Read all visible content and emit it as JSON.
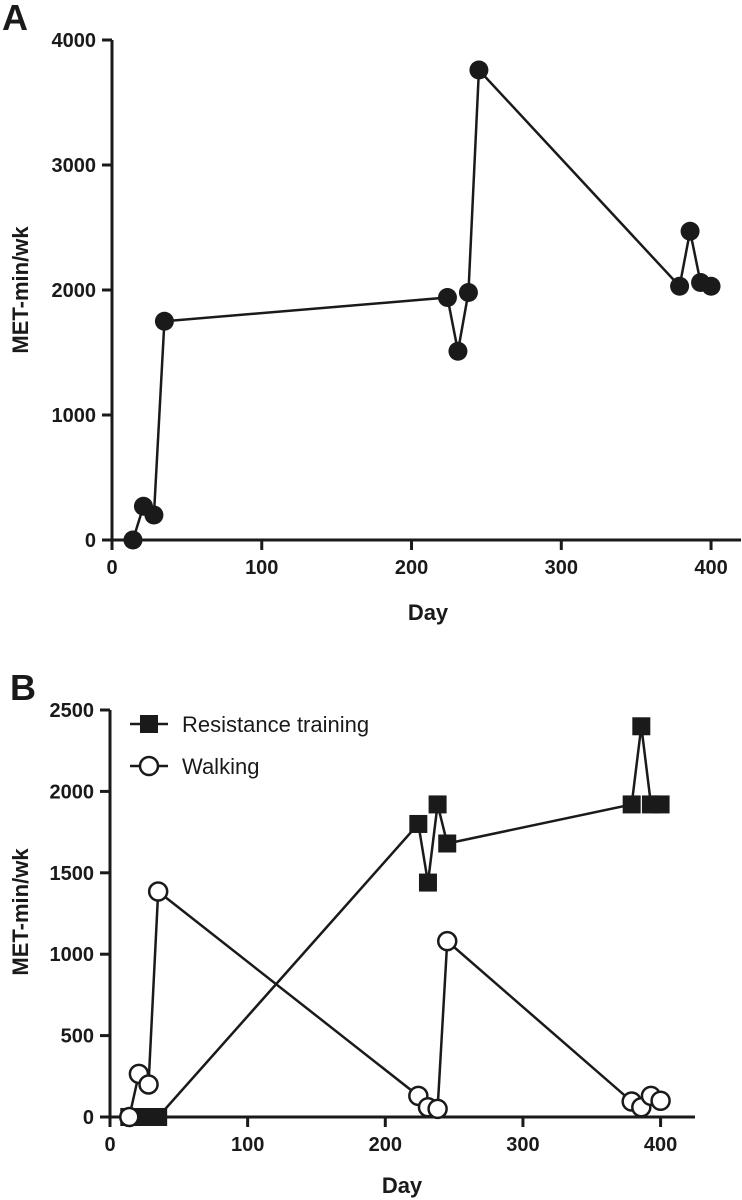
{
  "chart_data": [
    {
      "panel": "A",
      "type": "line",
      "xlabel": "Day",
      "ylabel": "MET-min/wk",
      "xlim": [
        0,
        420
      ],
      "ylim": [
        0,
        4000
      ],
      "xticks": [
        0,
        100,
        200,
        300,
        400
      ],
      "yticks": [
        0,
        1000,
        2000,
        3000,
        4000
      ],
      "grid": false,
      "series": [
        {
          "marker": "filled-circle",
          "x": [
            14,
            21,
            28,
            35,
            224,
            231,
            238,
            245,
            379,
            386,
            393,
            400
          ],
          "y": [
            0,
            270,
            200,
            1750,
            1940,
            1510,
            1980,
            3760,
            2030,
            2470,
            2060,
            2030
          ]
        }
      ]
    },
    {
      "panel": "B",
      "type": "line",
      "xlabel": "Day",
      "ylabel": "MET-min/wk",
      "xlim": [
        0,
        425
      ],
      "ylim": [
        0,
        2500
      ],
      "xticks": [
        0,
        100,
        200,
        300,
        400
      ],
      "yticks": [
        0,
        500,
        1000,
        1500,
        2000,
        2500
      ],
      "grid": false,
      "legend": "top-left",
      "series": [
        {
          "name": "Resistance training",
          "marker": "filled-square",
          "x": [
            14,
            21,
            28,
            35,
            224,
            231,
            238,
            245,
            379,
            386,
            393,
            400
          ],
          "y": [
            0,
            0,
            0,
            0,
            1800,
            1440,
            1920,
            1680,
            1920,
            2400,
            1920,
            1920
          ]
        },
        {
          "name": "Walking",
          "marker": "open-circle",
          "x": [
            14,
            21,
            28,
            35,
            224,
            231,
            238,
            245,
            379,
            386,
            393,
            400
          ],
          "y": [
            0,
            265,
            200,
            1385,
            130,
            60,
            50,
            1080,
            95,
            60,
            130,
            100
          ]
        }
      ]
    }
  ]
}
